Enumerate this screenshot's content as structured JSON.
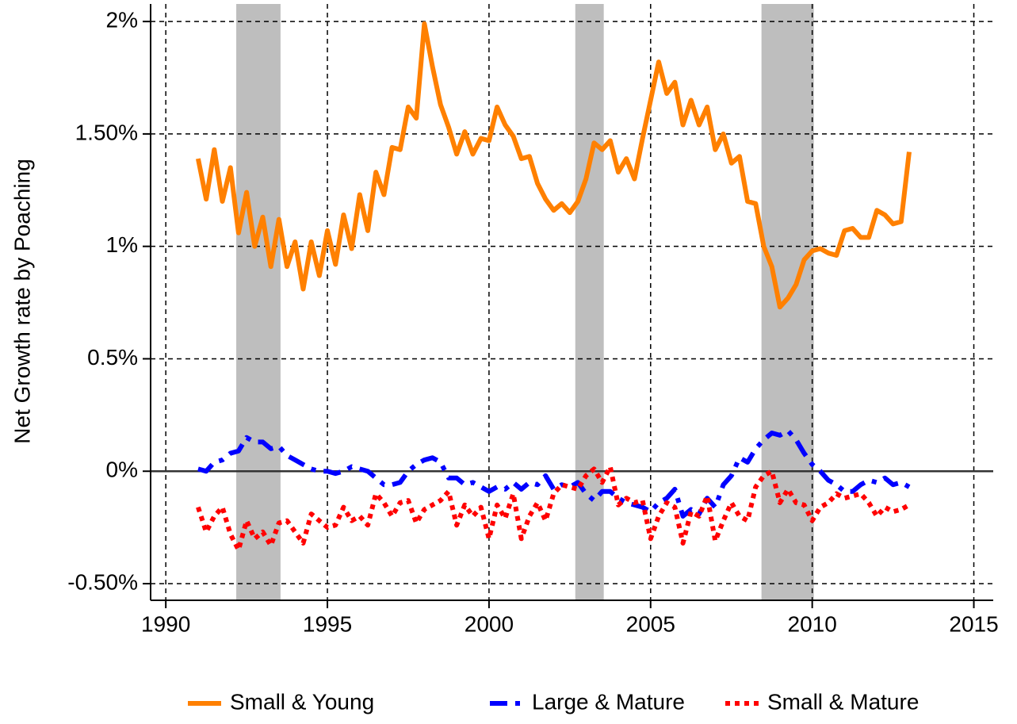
{
  "chart_data": {
    "type": "line",
    "y_label": "Net Growth rate by Poaching",
    "x": [
      1991,
      1991.25,
      1991.5,
      1991.75,
      1992,
      1992.25,
      1992.5,
      1992.75,
      1993,
      1993.25,
      1993.5,
      1993.75,
      1994,
      1994.25,
      1994.5,
      1994.75,
      1995,
      1995.25,
      1995.5,
      1995.75,
      1996,
      1996.25,
      1996.5,
      1996.75,
      1997,
      1997.25,
      1997.5,
      1997.75,
      1998,
      1998.25,
      1998.5,
      1998.75,
      1999,
      1999.25,
      1999.5,
      1999.75,
      2000,
      2000.25,
      2000.5,
      2000.75,
      2001,
      2001.25,
      2001.5,
      2001.75,
      2002,
      2002.25,
      2002.5,
      2002.75,
      2003,
      2003.25,
      2003.5,
      2003.75,
      2004,
      2004.25,
      2004.5,
      2004.75,
      2005,
      2005.25,
      2005.5,
      2005.75,
      2006,
      2006.25,
      2006.5,
      2006.75,
      2007,
      2007.25,
      2007.5,
      2007.75,
      2008,
      2008.25,
      2008.5,
      2008.75,
      2009,
      2009.25,
      2009.5,
      2009.75,
      2010,
      2010.25,
      2010.5,
      2010.75,
      2011,
      2011.25,
      2011.5,
      2011.75,
      2012,
      2012.25,
      2012.5,
      2012.75,
      2013
    ],
    "series": [
      {
        "name": "Small & Young",
        "color": "#ff8000",
        "dash": "solid",
        "values": [
          1.39,
          1.21,
          1.43,
          1.2,
          1.35,
          1.06,
          1.24,
          1.0,
          1.13,
          0.91,
          1.12,
          0.91,
          1.02,
          0.81,
          1.02,
          0.87,
          1.07,
          0.92,
          1.14,
          0.99,
          1.23,
          1.07,
          1.33,
          1.23,
          1.44,
          1.43,
          1.62,
          1.57,
          1.99,
          1.8,
          1.63,
          1.53,
          1.41,
          1.51,
          1.41,
          1.48,
          1.47,
          1.62,
          1.54,
          1.49,
          1.39,
          1.4,
          1.28,
          1.21,
          1.16,
          1.19,
          1.15,
          1.2,
          1.3,
          1.46,
          1.43,
          1.47,
          1.33,
          1.39,
          1.3,
          1.48,
          1.65,
          1.82,
          1.68,
          1.73,
          1.54,
          1.65,
          1.54,
          1.62,
          1.43,
          1.5,
          1.37,
          1.4,
          1.2,
          1.19,
          1.0,
          0.91,
          0.73,
          0.77,
          0.83,
          0.94,
          0.98,
          0.99,
          0.97,
          0.96,
          1.07,
          1.08,
          1.04,
          1.04,
          1.16,
          1.14,
          1.1,
          1.11,
          1.42
        ]
      },
      {
        "name": "Large & Mature",
        "color": "#0000ff",
        "dash": "dashdot",
        "values": [
          0.01,
          0.0,
          0.04,
          0.05,
          0.08,
          0.09,
          0.15,
          0.13,
          0.13,
          0.1,
          0.11,
          0.07,
          0.05,
          0.03,
          0.01,
          0.0,
          0.0,
          -0.01,
          0.0,
          0.02,
          0.01,
          0.0,
          -0.03,
          -0.06,
          -0.06,
          -0.05,
          0.0,
          0.03,
          0.05,
          0.06,
          0.04,
          -0.03,
          -0.03,
          -0.06,
          -0.05,
          -0.07,
          -0.09,
          -0.07,
          -0.08,
          -0.05,
          -0.08,
          -0.05,
          -0.06,
          -0.02,
          -0.08,
          -0.06,
          -0.07,
          -0.05,
          -0.1,
          -0.13,
          -0.09,
          -0.09,
          -0.12,
          -0.14,
          -0.15,
          -0.16,
          -0.18,
          -0.14,
          -0.12,
          -0.08,
          -0.2,
          -0.17,
          -0.19,
          -0.12,
          -0.16,
          -0.06,
          -0.02,
          0.06,
          0.04,
          0.1,
          0.14,
          0.17,
          0.16,
          0.18,
          0.14,
          0.08,
          0.03,
          0.0,
          -0.04,
          -0.06,
          -0.09,
          -0.09,
          -0.06,
          -0.04,
          -0.05,
          -0.03,
          -0.06,
          -0.05,
          -0.07
        ]
      },
      {
        "name": "Small & Mature",
        "color": "#ff0000",
        "dash": "dot",
        "values": [
          -0.16,
          -0.27,
          -0.2,
          -0.16,
          -0.28,
          -0.35,
          -0.22,
          -0.3,
          -0.27,
          -0.33,
          -0.23,
          -0.22,
          -0.27,
          -0.32,
          -0.19,
          -0.22,
          -0.25,
          -0.24,
          -0.16,
          -0.22,
          -0.2,
          -0.24,
          -0.1,
          -0.14,
          -0.2,
          -0.14,
          -0.13,
          -0.23,
          -0.17,
          -0.15,
          -0.13,
          -0.09,
          -0.24,
          -0.15,
          -0.2,
          -0.16,
          -0.3,
          -0.15,
          -0.21,
          -0.1,
          -0.3,
          -0.2,
          -0.14,
          -0.22,
          -0.1,
          -0.06,
          -0.07,
          -0.08,
          -0.02,
          0.01,
          -0.05,
          0.02,
          -0.15,
          -0.12,
          -0.14,
          -0.13,
          -0.3,
          -0.2,
          -0.14,
          -0.16,
          -0.32,
          -0.18,
          -0.2,
          -0.11,
          -0.31,
          -0.22,
          -0.14,
          -0.2,
          -0.22,
          -0.07,
          -0.02,
          0.0,
          -0.14,
          -0.08,
          -0.14,
          -0.15,
          -0.22,
          -0.16,
          -0.14,
          -0.1,
          -0.12,
          -0.11,
          -0.1,
          -0.14,
          -0.2,
          -0.16,
          -0.18,
          -0.17,
          -0.15
        ]
      }
    ],
    "shaded_periods": [
      [
        1992.18,
        1993.55
      ],
      [
        2002.67,
        2003.55
      ],
      [
        2008.43,
        2010.05
      ]
    ],
    "shade_color": "#bebebe",
    "reference_line": 0,
    "xlim": [
      1989.53,
      2015.6
    ],
    "xticks": [
      1990,
      1995,
      2000,
      2005,
      2010,
      2015
    ],
    "ylim": [
      -0.574,
      2.078
    ],
    "yticks": [
      {
        "value": -0.5,
        "label": "-0.50%"
      },
      {
        "value": 0,
        "label": "0%"
      },
      {
        "value": 0.5,
        "label": "0.5%"
      },
      {
        "value": 1,
        "label": "1%"
      },
      {
        "value": 1.5,
        "label": "1.50%"
      },
      {
        "value": 2,
        "label": "2%"
      }
    ],
    "grid": true,
    "legend": "bottom"
  }
}
